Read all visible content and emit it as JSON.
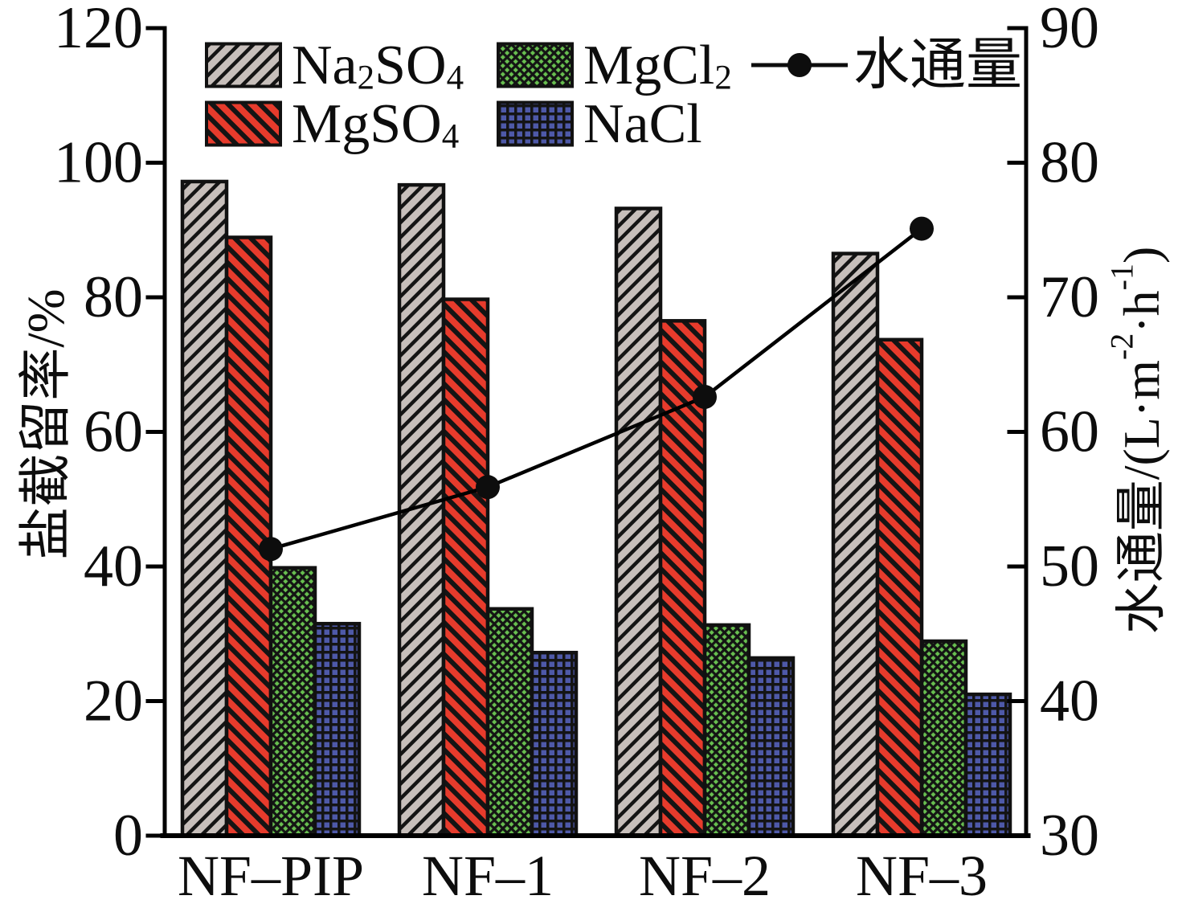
{
  "chart_data": {
    "type": "bar",
    "title": "",
    "categories": [
      "NF–PIP",
      "NF–1",
      "NF–2",
      "NF–3"
    ],
    "series": [
      {
        "name": "Na₂SO₄",
        "values": [
          97.2,
          96.7,
          93.2,
          86.5
        ],
        "color": "#c7bfbb",
        "pattern": "diag-up"
      },
      {
        "name": "MgSO₄",
        "values": [
          88.9,
          79.7,
          76.5,
          73.7
        ],
        "color": "#e73b2c",
        "pattern": "diag-down"
      },
      {
        "name": "MgCl₂",
        "values": [
          39.8,
          33.7,
          31.3,
          28.9
        ],
        "color": "#68bf50",
        "pattern": "cross-diag"
      },
      {
        "name": "NaCl",
        "values": [
          31.5,
          27.2,
          26.4,
          21.0
        ],
        "color": "#4e59a8",
        "pattern": "grid"
      }
    ],
    "line_series": {
      "name": "水通量",
      "values": [
        51.3,
        55.9,
        62.6,
        75.1
      ],
      "color": "#000000",
      "axis": "right",
      "marker": "filled-circle"
    },
    "left_axis": {
      "label": "盐截留率/%",
      "min": 0,
      "max": 120,
      "ticks": [
        0,
        20,
        40,
        60,
        80,
        100,
        120
      ]
    },
    "right_axis": {
      "label": "水通量/(L·m⁻²·h⁻¹)",
      "min": 30,
      "max": 90,
      "ticks": [
        30,
        40,
        50,
        60,
        70,
        80,
        90
      ]
    },
    "grid": false,
    "legend_position": "top-inside",
    "legend_entries": [
      "Na₂SO₄",
      "MgSO₄",
      "MgCl₂",
      "NaCl",
      "水通量"
    ],
    "hatch_line_color": "#141414",
    "axis_color": "#000000"
  }
}
